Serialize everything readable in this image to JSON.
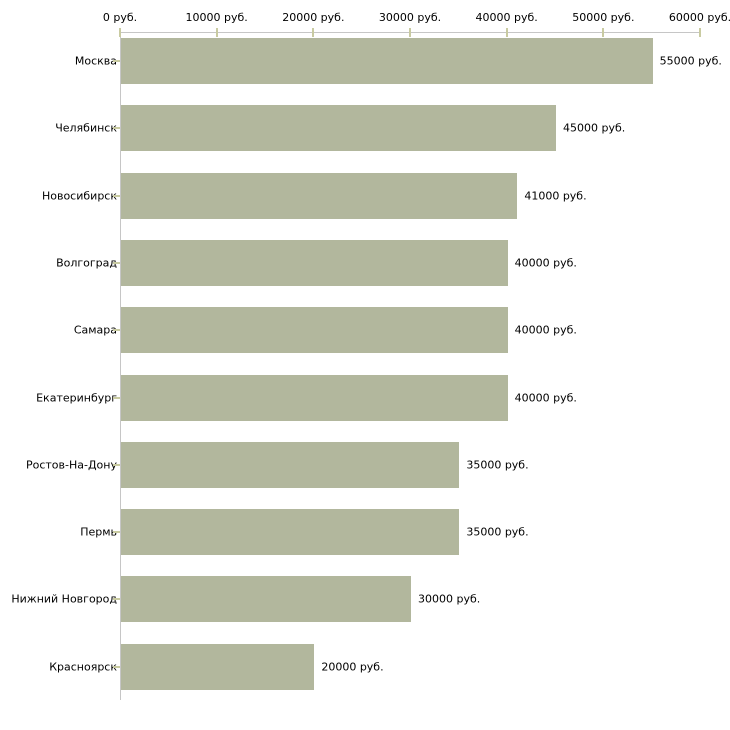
{
  "colors": {
    "background": "#ffffff",
    "bar_fill": "#b2b79d",
    "axis_line": "#c6c6c6",
    "tick_mark": "#c9cba1",
    "text": "#000000"
  },
  "chart_data": {
    "type": "bar",
    "orientation": "horizontal",
    "title": "",
    "xlabel": "",
    "ylabel": "",
    "grid": false,
    "legend": false,
    "axis_position": "top",
    "xlim": [
      0,
      60000
    ],
    "x_ticks": [
      0,
      10000,
      20000,
      30000,
      40000,
      50000,
      60000
    ],
    "x_tick_labels": [
      "0 руб.",
      "10000 руб.",
      "20000 руб.",
      "30000 руб.",
      "40000 руб.",
      "50000 руб.",
      "60000 руб."
    ],
    "categories": [
      "Москва",
      "Челябинск",
      "Новосибирск",
      "Волгоград",
      "Самара",
      "Екатеринбург",
      "Ростов-На-Дону",
      "Пермь",
      "Нижний Новгород",
      "Красноярск"
    ],
    "values": [
      55000,
      45000,
      41000,
      40000,
      40000,
      40000,
      35000,
      35000,
      30000,
      20000
    ],
    "value_labels": [
      "55000 руб.",
      "45000 руб.",
      "41000 руб.",
      "40000 руб.",
      "40000 руб.",
      "40000 руб.",
      "35000 руб.",
      "35000 руб.",
      "30000 руб.",
      "20000 руб."
    ]
  }
}
